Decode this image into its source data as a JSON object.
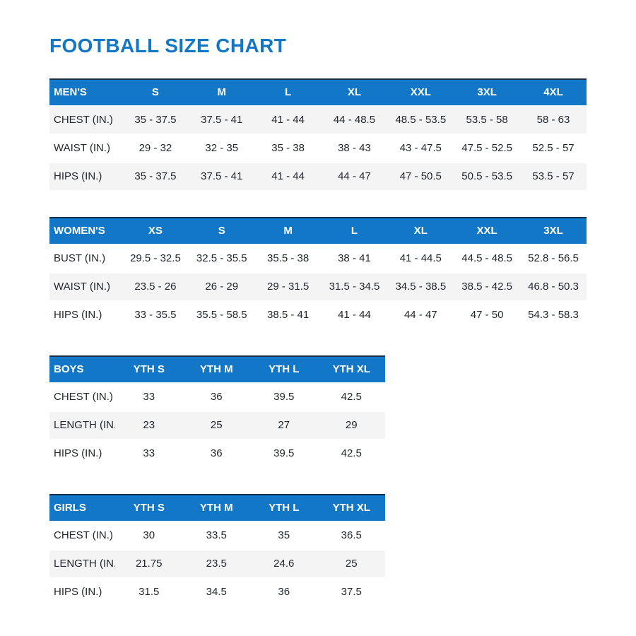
{
  "page": {
    "title": "FOOTBALL SIZE CHART"
  },
  "colors": {
    "accent_blue": "#1377c7",
    "header_top_border": "#16334e",
    "shaded_row": "#f4f4f5",
    "text": "#23282d"
  },
  "tables": [
    {
      "id": "mens",
      "header": [
        "MEN'S",
        "S",
        "M",
        "L",
        "XL",
        "XXL",
        "3XL",
        "4XL"
      ],
      "rows": [
        {
          "label": "CHEST (IN.)",
          "shaded": true,
          "values": [
            "35 - 37.5",
            "37.5 - 41",
            "41 - 44",
            "44 - 48.5",
            "48.5 - 53.5",
            "53.5 - 58",
            "58 - 63"
          ]
        },
        {
          "label": "WAIST (IN.)",
          "shaded": false,
          "values": [
            "29 - 32",
            "32 - 35",
            "35 - 38",
            "38 - 43",
            "43 - 47.5",
            "47.5 - 52.5",
            "52.5 - 57"
          ]
        },
        {
          "label": "HIPS (IN.)",
          "shaded": true,
          "values": [
            "35 - 37.5",
            "37.5 - 41",
            "41 - 44",
            "44 - 47",
            "47 - 50.5",
            "50.5 - 53.5",
            "53.5 - 57"
          ]
        }
      ]
    },
    {
      "id": "womens",
      "header": [
        "WOMEN'S",
        "XS",
        "S",
        "M",
        "L",
        "XL",
        "XXL",
        "3XL"
      ],
      "rows": [
        {
          "label": "BUST (IN.)",
          "shaded": false,
          "values": [
            "29.5 - 32.5",
            "32.5 - 35.5",
            "35.5 - 38",
            "38 - 41",
            "41 - 44.5",
            "44.5 - 48.5",
            "52.8 - 56.5"
          ]
        },
        {
          "label": "WAIST (IN.)",
          "shaded": true,
          "values": [
            "23.5 - 26",
            "26 - 29",
            "29 - 31.5",
            "31.5 - 34.5",
            "34.5 - 38.5",
            "38.5 - 42.5",
            "46.8 - 50.3"
          ]
        },
        {
          "label": "HIPS (IN.)",
          "shaded": false,
          "values": [
            "33 - 35.5",
            "35.5 - 58.5",
            "38.5 - 41",
            "41 - 44",
            "44 - 47",
            "47 - 50",
            "54.3 - 58.3"
          ]
        }
      ]
    },
    {
      "id": "boys",
      "header": [
        "BOYS",
        "YTH S",
        "YTH M",
        "YTH L",
        "YTH XL"
      ],
      "rows": [
        {
          "label": "CHEST (IN.)",
          "shaded": false,
          "values": [
            "33",
            "36",
            "39.5",
            "42.5"
          ]
        },
        {
          "label": "LENGTH (IN.)",
          "shaded": true,
          "values": [
            "23",
            "25",
            "27",
            "29"
          ]
        },
        {
          "label": "HIPS (IN.)",
          "shaded": false,
          "values": [
            "33",
            "36",
            "39.5",
            "42.5"
          ]
        }
      ]
    },
    {
      "id": "girls",
      "header": [
        "GIRLS",
        "YTH S",
        "YTH M",
        "YTH L",
        "YTH XL"
      ],
      "rows": [
        {
          "label": "CHEST (IN.)",
          "shaded": false,
          "values": [
            "30",
            "33.5",
            "35",
            "36.5"
          ]
        },
        {
          "label": "LENGTH (IN.)",
          "shaded": true,
          "values": [
            "21.75",
            "23.5",
            "24.6",
            "25"
          ]
        },
        {
          "label": "HIPS (IN.)",
          "shaded": false,
          "values": [
            "31.5",
            "34.5",
            "36",
            "37.5"
          ]
        }
      ]
    }
  ]
}
